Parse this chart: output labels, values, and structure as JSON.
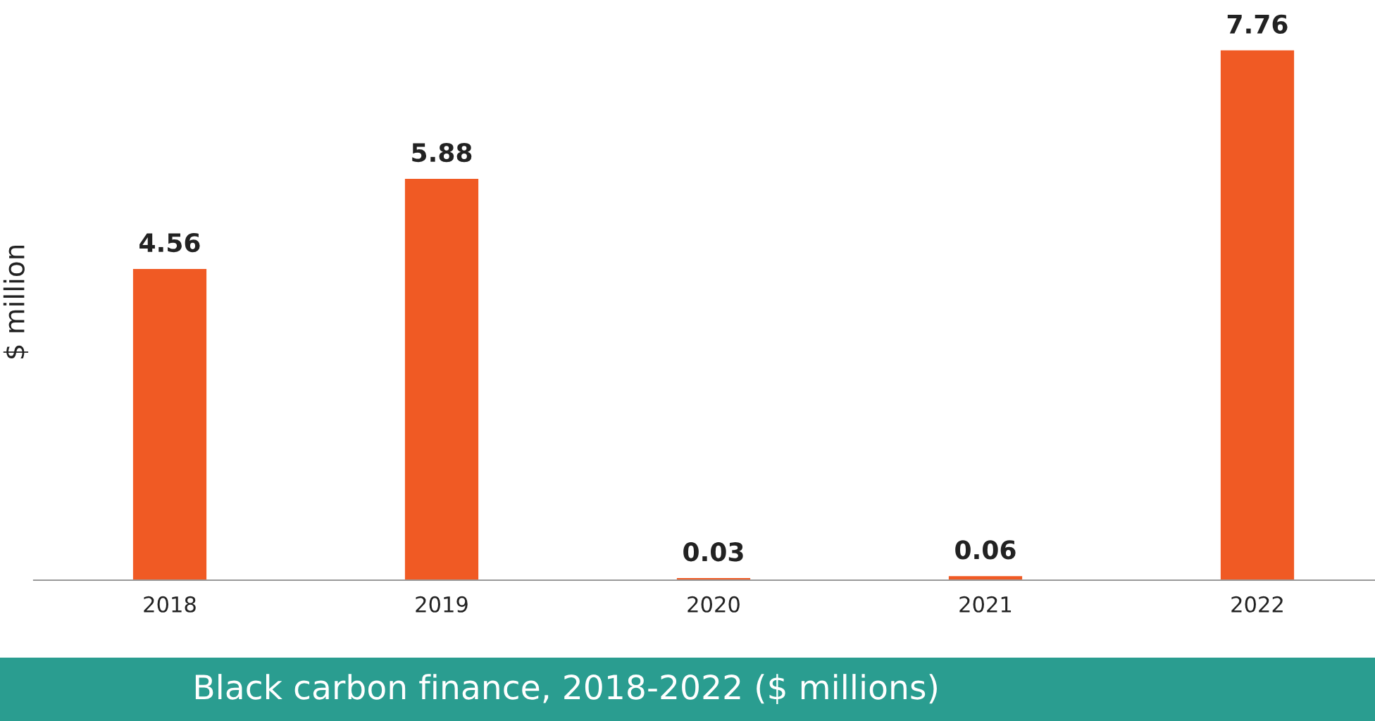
{
  "chart_data": {
    "type": "bar",
    "title": "Black carbon finance, 2018-2022 ($ millions)",
    "ylabel": "$ million",
    "categories": [
      "2018",
      "2019",
      "2020",
      "2021",
      "2022"
    ],
    "values": [
      4.56,
      5.88,
      0.03,
      0.06,
      7.76
    ],
    "color": "#f05a24",
    "relative": false,
    "data_labels": true,
    "grid": false,
    "legend": false
  }
}
